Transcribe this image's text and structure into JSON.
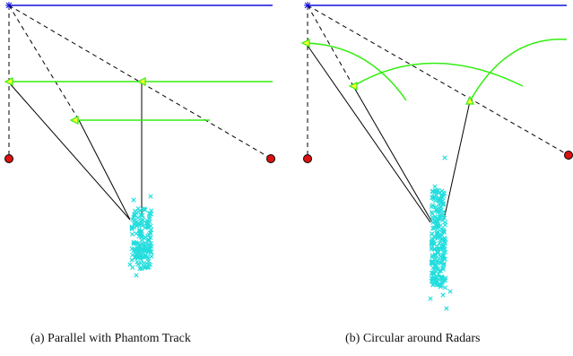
{
  "panels": [
    {
      "id": "a",
      "caption": "(a) Parallel with Phantom Track"
    },
    {
      "id": "b",
      "caption": "(b) Circular around Radars"
    }
  ],
  "colors": {
    "horizon_line": "#1010dd",
    "radar_marker": "#dd1111",
    "trajectory": "#33ee11",
    "point_cloud": "#22dddd",
    "solid_line": "#000000",
    "dashed_line": "#000000"
  },
  "icons": {
    "origin": "asterisk-icon",
    "radar": "red-circle-icon",
    "direction": "triangle-arrow-icon",
    "sample": "cross-icon"
  }
}
